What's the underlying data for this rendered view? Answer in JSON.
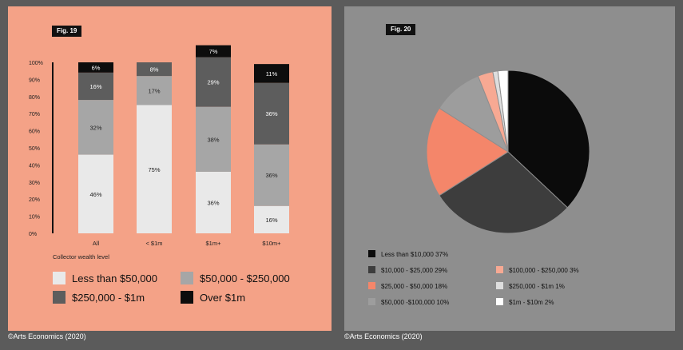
{
  "left": {
    "fig_label": "Fig. 19",
    "credit": "©Arts Economics (2020)",
    "chart_data": {
      "type": "bar",
      "stacked": true,
      "xlabel": "Collector wealth level",
      "ylim": [
        0,
        100
      ],
      "ytick_labels": [
        "0%",
        "10%",
        "20%",
        "30%",
        "40%",
        "50%",
        "60%",
        "70%",
        "80%",
        "90%",
        "100%"
      ],
      "categories": [
        "All",
        "< $1m",
        "$1m+",
        "$10m+"
      ],
      "series": [
        {
          "name": "Less than $50,000",
          "color": "#e9e9e9",
          "values": [
            46,
            75,
            36,
            16
          ]
        },
        {
          "name": "$50,000 - $250,000",
          "color": "#a6a6a6",
          "values": [
            32,
            17,
            38,
            36
          ]
        },
        {
          "name": "$250,000 - $1m",
          "color": "#5d5d5d",
          "values": [
            16,
            8,
            29,
            36
          ]
        },
        {
          "name": "Over $1m",
          "color": "#0d0d0d",
          "values": [
            6,
            0,
            7,
            11
          ]
        }
      ],
      "data_labels": [
        [
          "46%",
          "75%",
          "36%",
          "16%"
        ],
        [
          "32%",
          "17%",
          "38%",
          "36%"
        ],
        [
          "16%",
          "8%",
          "29%",
          "36%"
        ],
        [
          "6%",
          "",
          "7%",
          "11%"
        ]
      ],
      "legend": [
        "Less than $50,000",
        "$50,000 - $250,000",
        "$250,000 - $1m",
        "Over $1m"
      ],
      "legend_placement": "bottom"
    }
  },
  "right": {
    "fig_label": "Fig. 20",
    "credit": "©Arts Economics (2020)",
    "chart_data": {
      "type": "pie",
      "slices": [
        {
          "label": "Less than $10,000 37%",
          "value": 37,
          "color": "#0b0b0b"
        },
        {
          "label": "$10,000 - $25,000 29%",
          "value": 29,
          "color": "#3d3d3d"
        },
        {
          "label": "$25,000 - $50,000 18%",
          "value": 18,
          "color": "#f4866a"
        },
        {
          "label": "$50,000 -$100,000 10%",
          "value": 10,
          "color": "#9d9d9d"
        },
        {
          "label": "$100,000 - $250,000 3%",
          "value": 3,
          "color": "#f7a993"
        },
        {
          "label": "$250,000 - $1m 1%",
          "value": 1,
          "color": "#dedede"
        },
        {
          "label": "$1m - $10m 2%",
          "value": 2,
          "color": "#ffffff"
        }
      ],
      "legend_placement": "bottom"
    }
  }
}
